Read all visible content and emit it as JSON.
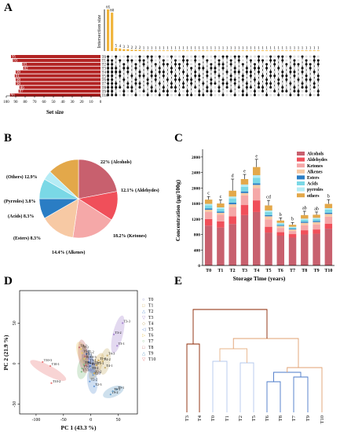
{
  "colors": {
    "upset_bar": "#F0B43C",
    "set_bar": "#B22222",
    "dot_dark": "#111111",
    "dot_light": "#DDDDDD",
    "pie": [
      "#C8606E",
      "#F04F5A",
      "#F5A8A8",
      "#F7C9A4",
      "#2A7DC4",
      "#7AD8E6",
      "#B5ECF5",
      "#E3A84A"
    ],
    "stack": [
      "#C8606E",
      "#F04F5A",
      "#F5A8A8",
      "#F7C9A4",
      "#2A7DC4",
      "#7AD8E6",
      "#B5ECF5",
      "#E3A84A"
    ],
    "dendro": [
      "#8B2500",
      "#E8B48A",
      "#B4C8EE",
      "#4A78C8",
      "#E0A070"
    ]
  },
  "panels": {
    "A": "A",
    "B": "B",
    "C": "C",
    "D": "D",
    "E": "E"
  },
  "chart_data": [
    {
      "type": "upset",
      "panel": "A",
      "ylabel": "Intersection size",
      "xlabel_sets": "Set size",
      "intersection_sizes": [
        65,
        60,
        5,
        4,
        3,
        3,
        2,
        2,
        2,
        1,
        1,
        1,
        1,
        1,
        1,
        1,
        1,
        1,
        1,
        1,
        1,
        1,
        1,
        1,
        1,
        1,
        1,
        1,
        1,
        1,
        1,
        1,
        1,
        1,
        1,
        1,
        1,
        1,
        1,
        1,
        1,
        1,
        1,
        1,
        1,
        1,
        1,
        1,
        1,
        1,
        1,
        1,
        1,
        1
      ],
      "intersection_labels": [
        "65",
        "60",
        "5",
        "4",
        "3",
        "3",
        "2",
        "2",
        "2",
        "1",
        "1",
        "1",
        "1",
        "1",
        "1",
        "1",
        "1",
        "1",
        "1",
        "1",
        "1",
        "1",
        "1",
        "1",
        "1",
        "1",
        "1",
        "1",
        "1",
        "1",
        "1",
        "1",
        "1",
        "1",
        "1",
        "1",
        "1",
        "1",
        "1",
        "1",
        "1",
        "1",
        "1",
        "1",
        "1",
        "1",
        "1",
        "1",
        "1",
        "1",
        "1",
        "1",
        "1",
        "1"
      ],
      "sets": [
        "T0",
        "T1",
        "T2",
        "T3",
        "T4",
        "T5",
        "T6",
        "T7",
        "T8",
        "T9",
        "T10"
      ],
      "set_sizes": [
        95,
        93,
        83,
        82,
        90,
        91,
        90,
        90,
        86,
        87,
        96
      ],
      "set_size_labels": [
        "95",
        "93",
        "83",
        "82",
        "90",
        "91",
        "90",
        "90",
        "86",
        "87",
        "96"
      ],
      "set_axis_ticks": [
        "100",
        "90",
        "80",
        "70",
        "60",
        "50",
        "40",
        "30",
        "20",
        "10",
        "0"
      ]
    },
    {
      "type": "pie",
      "panel": "B",
      "slices": [
        {
          "label": "22% (Alcohols)",
          "value": 22.0
        },
        {
          "label": "12.1% (Aldehydes)",
          "value": 12.1
        },
        {
          "label": "18.2% (Ketones)",
          "value": 18.2
        },
        {
          "label": "14.4% (Alkenes)",
          "value": 14.4
        },
        {
          "label": "(Esters) 8.3%",
          "value": 8.3
        },
        {
          "label": "(Acids) 8.3%",
          "value": 8.3
        },
        {
          "label": "(Pyrroles) 3.8%",
          "value": 3.8
        },
        {
          "label": "(Others) 12.9%",
          "value": 12.9
        }
      ]
    },
    {
      "type": "bar",
      "stacked": true,
      "panel": "C",
      "xlabel": "Storage Time (years)",
      "ylabel": "Concentration (μg/100g)",
      "ylim": [
        0,
        3000
      ],
      "yticks": [
        "0",
        "400",
        "800",
        "1200",
        "1600",
        "2000",
        "2400",
        "2800"
      ],
      "categories": [
        "T0",
        "T1",
        "T2",
        "T3",
        "T4",
        "T5",
        "T6",
        "T7",
        "T8",
        "T9",
        "T10"
      ],
      "letters": [
        "c",
        "c",
        "d",
        "e",
        "e",
        "cd",
        "b",
        "b",
        "ab",
        "ab",
        "b"
      ],
      "errors": [
        80,
        90,
        300,
        120,
        200,
        130,
        70,
        60,
        100,
        70,
        110
      ],
      "legend_position": "top-right",
      "series": [
        {
          "name": "Alcohols",
          "values": [
            1030,
            980,
            1070,
            1300,
            1380,
            850,
            770,
            720,
            800,
            820,
            950
          ]
        },
        {
          "name": "Aldehydes",
          "values": [
            170,
            160,
            200,
            260,
            300,
            150,
            90,
            90,
            110,
            110,
            130
          ]
        },
        {
          "name": "Ketones",
          "values": [
            180,
            170,
            230,
            250,
            320,
            190,
            110,
            80,
            130,
            130,
            180
          ]
        },
        {
          "name": "Alkenes",
          "values": [
            60,
            50,
            80,
            60,
            80,
            80,
            50,
            40,
            60,
            60,
            70
          ]
        },
        {
          "name": "Esters",
          "values": [
            30,
            30,
            40,
            40,
            40,
            30,
            20,
            20,
            30,
            30,
            30
          ]
        },
        {
          "name": "Acids",
          "values": [
            80,
            70,
            110,
            120,
            140,
            80,
            40,
            30,
            50,
            50,
            80
          ]
        },
        {
          "name": "pyrroles",
          "values": [
            40,
            40,
            50,
            60,
            70,
            40,
            20,
            20,
            30,
            30,
            40
          ]
        },
        {
          "name": "others",
          "values": [
            110,
            100,
            150,
            140,
            210,
            130,
            60,
            50,
            90,
            80,
            110
          ]
        }
      ]
    },
    {
      "type": "scatter",
      "panel": "D",
      "xlabel": "PC 1 (43.3 %)",
      "ylabel": "PC 2 (21.9 %)",
      "xlim": [
        -130,
        85
      ],
      "ylim": [
        -62,
        90
      ],
      "xticks": [
        -100,
        -50,
        0,
        50
      ],
      "yticks": [
        -50,
        0,
        50
      ],
      "legend_position": "right",
      "groups": [
        {
          "name": "T0",
          "color": "#8E8EC8",
          "points": [
            [
              5,
              -1,
              "T0-1"
            ],
            [
              0,
              -8,
              "T0-2"
            ],
            [
              -4,
              6,
              "T0-3"
            ]
          ]
        },
        {
          "name": "T1",
          "color": "#D0A850",
          "points": [
            [
              10,
              -2,
              "T1-1"
            ],
            [
              6,
              -12,
              "T1-2"
            ],
            [
              14,
              4,
              "T1-3"
            ]
          ]
        },
        {
          "name": "T2",
          "color": "#6A9AD8",
          "points": [
            [
              4,
              -14,
              "T2-1"
            ],
            [
              -2,
              -22,
              "T2-2"
            ],
            [
              6,
              -28,
              "T2-3"
            ]
          ]
        },
        {
          "name": "T3",
          "color": "#A888D0",
          "points": [
            [
              48,
              22,
              "T3-1"
            ],
            [
              42,
              36,
              "T3-2"
            ],
            [
              58,
              50,
              "T3-3"
            ]
          ]
        },
        {
          "name": "T4",
          "color": "#C8B070",
          "points": [
            [
              26,
              -5,
              "T4-1"
            ],
            [
              22,
              3,
              "T4-2"
            ],
            [
              30,
              10,
              "T4-3"
            ]
          ]
        },
        {
          "name": "T5",
          "color": "#4A78C8",
          "points": [
            [
              -4,
              2,
              "T5-1"
            ],
            [
              -8,
              12,
              "T5-2"
            ],
            [
              -1,
              -3,
              "T5-3"
            ]
          ]
        },
        {
          "name": "T6",
          "color": "#E8C860",
          "points": [
            [
              -12,
              6,
              "T6-1"
            ],
            [
              -16,
              13,
              "T6-2"
            ],
            [
              -18,
              18,
              "T6-3"
            ]
          ]
        },
        {
          "name": "T7",
          "color": "#88C088",
          "points": [
            [
              -16,
              -6,
              "T7-1"
            ],
            [
              -13,
              -1,
              "T7-2"
            ],
            [
              -17,
              -10,
              "T7-3"
            ]
          ]
        },
        {
          "name": "T8",
          "color": "#C06868",
          "points": [
            [
              -11,
              9,
              "T8-1"
            ],
            [
              -21,
              20,
              "T8-2"
            ],
            [
              -9,
              -2,
              "T8-3"
            ]
          ]
        },
        {
          "name": "T9",
          "color": "#68A0C8",
          "points": [
            [
              47,
              -32,
              "T9-1"
            ],
            [
              36,
              -38,
              "T9-2"
            ],
            [
              40,
              -34,
              "T9-3"
            ]
          ]
        },
        {
          "name": "T10",
          "color": "#E87878",
          "points": [
            [
              -74,
              -3,
              "T10-1"
            ],
            [
              -72,
              -24,
              "T10-2"
            ],
            [
              -88,
              2,
              "T10-3"
            ]
          ]
        }
      ]
    },
    {
      "type": "dendrogram",
      "panel": "E",
      "leaves": [
        "T3",
        "T4",
        "T0",
        "T1",
        "T2",
        "T5",
        "T6",
        "T8",
        "T7",
        "T9",
        "T10"
      ]
    }
  ]
}
